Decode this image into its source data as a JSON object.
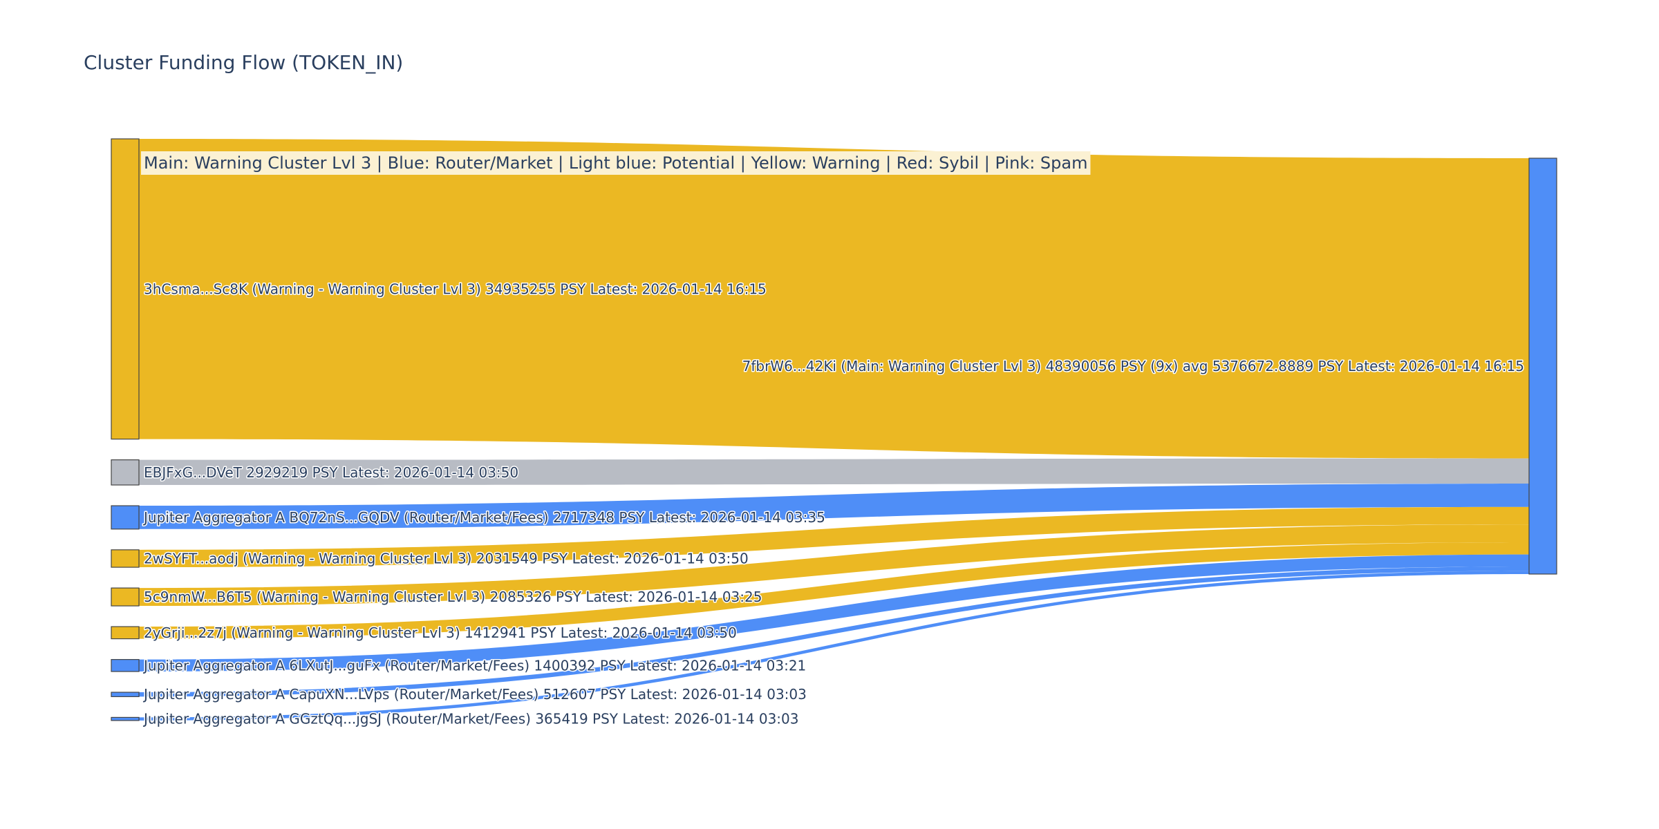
{
  "title": "Cluster Funding Flow (TOKEN_IN)",
  "legend": {
    "text": "Main: Warning Cluster Lvl 3  |  Blue: Router/Market | Light blue: Potential | Yellow: Warning | Red: Sybil | Pink: Spam",
    "bg_color": "#fbf1d3"
  },
  "chart_data": {
    "type": "sankey",
    "colors": {
      "warning": "#ebb823",
      "router": "#4f8ef7",
      "neutral": "#b8bcc4"
    },
    "target": {
      "id": "main",
      "label": "7fbrW6...42Ki (Main: Warning Cluster Lvl 3) 48390056 PSY (9x) avg 5376672.8889 PSY Latest: 2026-01-14 16:15",
      "category": "router",
      "value": 48390056
    },
    "sources": [
      {
        "id": "s1",
        "label": "3hCsma...Sc8K (Warning - Warning Cluster Lvl 3) 34935255 PSY Latest: 2026-01-14 16:15",
        "value": 34935255,
        "category": "warning"
      },
      {
        "id": "s2",
        "label": "EBJFxG...DVeT 2929219 PSY Latest: 2026-01-14 03:50",
        "value": 2929219,
        "category": "neutral"
      },
      {
        "id": "s3",
        "label": "Jupiter Aggregator A BQ72nS...GQDV (Router/Market/Fees) 2717348 PSY Latest: 2026-01-14 03:35",
        "value": 2717348,
        "category": "router"
      },
      {
        "id": "s4",
        "label": "2wSYFT...aodj (Warning - Warning Cluster Lvl 3) 2031549 PSY Latest: 2026-01-14 03:50",
        "value": 2031549,
        "category": "warning"
      },
      {
        "id": "s5",
        "label": "5c9nmW...B6T5 (Warning - Warning Cluster Lvl 3) 2085326 PSY Latest: 2026-01-14 03:25",
        "value": 2085326,
        "category": "warning"
      },
      {
        "id": "s6",
        "label": "2yGrji...2z7j (Warning - Warning Cluster Lvl 3) 1412941 PSY Latest: 2026-01-14 03:50",
        "value": 1412941,
        "category": "warning"
      },
      {
        "id": "s7",
        "label": "Jupiter Aggregator A 6LXutJ...guFx (Router/Market/Fees) 1400392 PSY Latest: 2026-01-14 03:21",
        "value": 1400392,
        "category": "router"
      },
      {
        "id": "s8",
        "label": "Jupiter Aggregator A CapuXN...LVps (Router/Market/Fees) 512607 PSY Latest: 2026-01-14 03:03",
        "value": 512607,
        "category": "router"
      },
      {
        "id": "s9",
        "label": "Jupiter Aggregator A GGztQq...jgSJ (Router/Market/Fees) 365419 PSY Latest: 2026-01-14 03:03",
        "value": 365419,
        "category": "router"
      }
    ]
  }
}
